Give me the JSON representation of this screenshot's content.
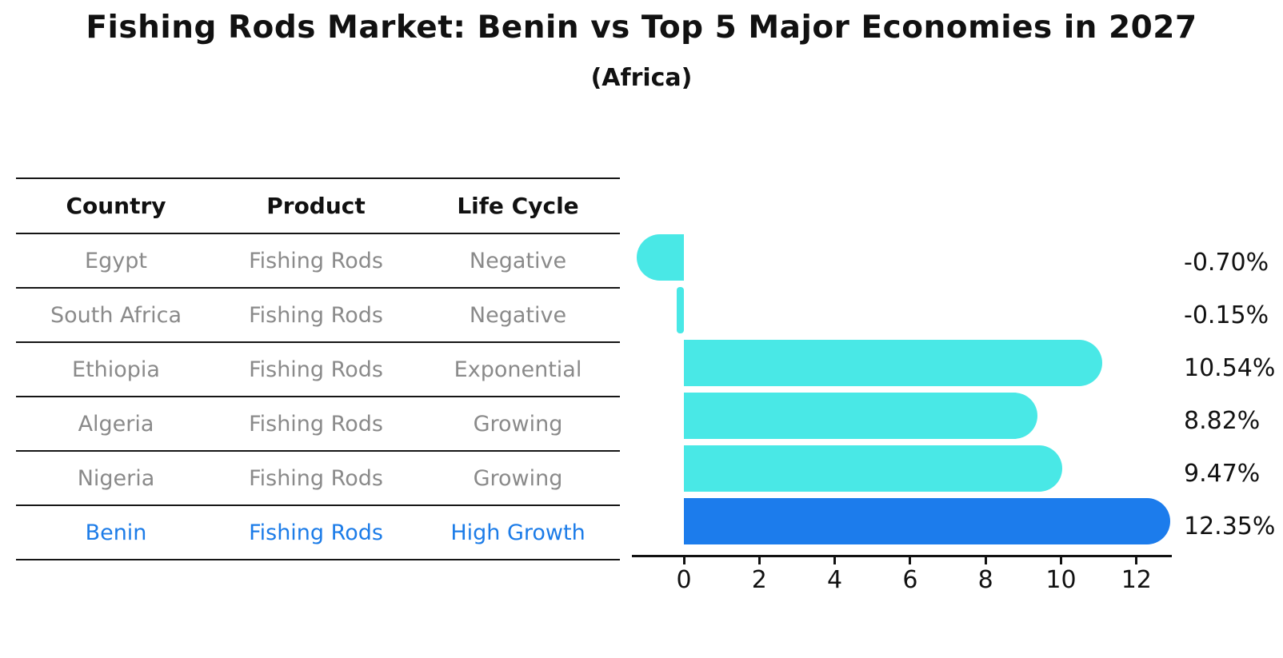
{
  "title": "Fishing Rods Market: Benin vs Top 5 Major Economies in 2027",
  "subtitle": "(Africa)",
  "table": {
    "headers": [
      "Country",
      "Product",
      "Life Cycle"
    ],
    "rows": [
      {
        "country": "Egypt",
        "product": "Fishing Rods",
        "life_cycle": "Negative",
        "highlighted": false
      },
      {
        "country": "South Africa",
        "product": "Fishing Rods",
        "life_cycle": "Negative",
        "highlighted": false
      },
      {
        "country": "Ethiopia",
        "product": "Fishing Rods",
        "life_cycle": "Exponential",
        "highlighted": false
      },
      {
        "country": "Algeria",
        "product": "Fishing Rods",
        "life_cycle": "Growing",
        "highlighted": false
      },
      {
        "country": "Nigeria",
        "product": "Fishing Rods",
        "life_cycle": "Growing",
        "highlighted": false
      },
      {
        "country": "Benin",
        "product": "Fishing Rods",
        "life_cycle": "High Growth",
        "highlighted": true
      }
    ]
  },
  "chart_data": {
    "type": "bar",
    "orientation": "horizontal",
    "title": "Fishing Rods Market: Benin vs Top 5 Major Economies in 2027",
    "subtitle": "(Africa)",
    "categories": [
      "Egypt",
      "South Africa",
      "Ethiopia",
      "Algeria",
      "Nigeria",
      "Benin"
    ],
    "values": [
      -0.7,
      -0.15,
      10.54,
      8.82,
      9.47,
      12.35
    ],
    "value_labels": [
      "-0.70%",
      "-0.15%",
      "10.54%",
      "8.82%",
      "9.47%",
      "12.35%"
    ],
    "xticks": [
      0,
      2,
      4,
      6,
      8,
      10,
      12
    ],
    "xlim": [
      -1.4,
      13.0
    ],
    "grid": false,
    "legend": "none",
    "bar_color": "#49e8e6",
    "highlight_color": "#1c7cec",
    "highlight_index": 5
  },
  "colors": {
    "highlight_text": "#1c7ce8",
    "body_text": "#8a8a8a",
    "heading_text": "#111111",
    "axis": "#111111"
  }
}
